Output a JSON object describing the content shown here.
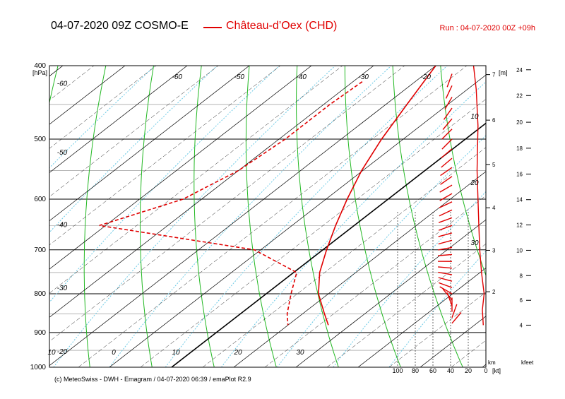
{
  "header": {
    "title": "04-07-2020 09Z COSMO-E",
    "station": "Château-d’Oex (CHD)",
    "run": "Run : 04-07-2020 00Z +09h"
  },
  "footer": "(c) MeteoSwiss - DWH - Emagram / 04-07-2020  06:39 / emaPlot R2.9",
  "colors": {
    "profile": "#e00000",
    "isotherm": "#000000",
    "dry_adiabat": "#22b822",
    "mixing_ratio": "#6ecbe6",
    "grid": "#000000"
  },
  "chart_data": {
    "type": "line",
    "title": "04-07-2020 09Z COSMO-E",
    "ylabel": "[hPa]",
    "y_log_scale": true,
    "ylim": [
      1000,
      400
    ],
    "pressure_ticks": [
      400,
      500,
      600,
      700,
      800,
      900,
      1000
    ],
    "isotherm_labels_bottom": [
      "10",
      "0",
      "10",
      "20",
      "30"
    ],
    "isotherm_labels_top": [
      "-60",
      "-50",
      "-40",
      "-30",
      "-20"
    ],
    "isotherm_labels_left": [
      "-60",
      "-50",
      "-40",
      "-30",
      "-20"
    ],
    "series": [
      {
        "name": "temperature",
        "style": "solid",
        "points": [
          {
            "p": 400,
            "t": -20.0
          },
          {
            "p": 450,
            "t": -16.6
          },
          {
            "p": 500,
            "t": -13.5
          },
          {
            "p": 550,
            "t": -10.2
          },
          {
            "p": 600,
            "t": -6.6
          },
          {
            "p": 650,
            "t": -3.0
          },
          {
            "p": 700,
            "t": 0.6
          },
          {
            "p": 750,
            "t": 4.2
          },
          {
            "p": 800,
            "t": 8.4
          },
          {
            "p": 850,
            "t": 13.5
          },
          {
            "p": 880,
            "t": 16.5
          }
        ]
      },
      {
        "name": "dewpoint",
        "style": "dashed",
        "points": [
          {
            "p": 420,
            "t": -28.5
          },
          {
            "p": 450,
            "t": -29.0
          },
          {
            "p": 500,
            "t": -29.0
          },
          {
            "p": 550,
            "t": -30.0
          },
          {
            "p": 600,
            "t": -33.0
          },
          {
            "p": 650,
            "t": -41.0
          },
          {
            "p": 700,
            "t": -11.0
          },
          {
            "p": 750,
            "t": 0.5
          },
          {
            "p": 800,
            "t": 4.0
          },
          {
            "p": 850,
            "t": 7.5
          },
          {
            "p": 880,
            "t": 10.0
          }
        ]
      }
    ],
    "wind_profile": {
      "name": "wind speed",
      "unit": "kt",
      "xlim": [
        100,
        0
      ],
      "ticks": [
        100,
        80,
        60,
        40,
        20,
        0
      ],
      "unit_label": "[kt]",
      "points": [
        {
          "p": 400,
          "v": 14
        },
        {
          "p": 430,
          "v": 11
        },
        {
          "p": 480,
          "v": 9
        },
        {
          "p": 550,
          "v": 10
        },
        {
          "p": 600,
          "v": 9
        },
        {
          "p": 650,
          "v": 8
        },
        {
          "p": 700,
          "v": 7
        },
        {
          "p": 750,
          "v": 5
        },
        {
          "p": 800,
          "v": 2
        },
        {
          "p": 840,
          "v": 4
        },
        {
          "p": 880,
          "v": 3
        }
      ]
    },
    "height_km": {
      "label": "[m]",
      "axis_label": "km",
      "ticks": [
        {
          "km": 2,
          "p": 795
        },
        {
          "km": 3,
          "p": 701
        },
        {
          "km": 4,
          "p": 616
        },
        {
          "km": 5,
          "p": 540
        },
        {
          "km": 6,
          "p": 472
        },
        {
          "km": 7,
          "p": 411
        }
      ]
    },
    "height_kfeet": {
      "axis_label": "kfeet",
      "ticks": [
        {
          "kft": 4,
          "p": 880
        },
        {
          "kft": 6,
          "p": 816
        },
        {
          "kft": 8,
          "p": 757
        },
        {
          "kft": 10,
          "p": 701
        },
        {
          "kft": 12,
          "p": 649
        },
        {
          "kft": 14,
          "p": 601
        },
        {
          "kft": 16,
          "p": 556
        },
        {
          "kft": 18,
          "p": 514
        },
        {
          "kft": 20,
          "p": 475
        },
        {
          "kft": 22,
          "p": 438
        },
        {
          "kft": 24,
          "p": 405
        }
      ]
    },
    "wind_panel_labels": [
      {
        "text": "10",
        "p": 470
      },
      {
        "text": "20",
        "p": 575
      },
      {
        "text": "30",
        "p": 690
      }
    ],
    "wind_barbs": [
      {
        "p": 410,
        "dir": 200
      },
      {
        "p": 425,
        "dir": 205
      },
      {
        "p": 440,
        "dir": 210
      },
      {
        "p": 455,
        "dir": 215
      },
      {
        "p": 470,
        "dir": 220
      },
      {
        "p": 485,
        "dir": 225
      },
      {
        "p": 500,
        "dir": 225
      },
      {
        "p": 515,
        "dir": 230
      },
      {
        "p": 530,
        "dir": 230
      },
      {
        "p": 545,
        "dir": 235
      },
      {
        "p": 560,
        "dir": 235
      },
      {
        "p": 575,
        "dir": 240
      },
      {
        "p": 590,
        "dir": 240
      },
      {
        "p": 605,
        "dir": 245
      },
      {
        "p": 620,
        "dir": 245
      },
      {
        "p": 635,
        "dir": 250
      },
      {
        "p": 650,
        "dir": 250
      },
      {
        "p": 665,
        "dir": 255
      },
      {
        "p": 680,
        "dir": 255
      },
      {
        "p": 695,
        "dir": 260
      },
      {
        "p": 710,
        "dir": 265
      },
      {
        "p": 725,
        "dir": 270
      },
      {
        "p": 740,
        "dir": 275
      },
      {
        "p": 755,
        "dir": 280
      },
      {
        "p": 770,
        "dir": 285
      },
      {
        "p": 785,
        "dir": 290
      },
      {
        "p": 800,
        "dir": 300
      },
      {
        "p": 815,
        "dir": 320
      },
      {
        "p": 830,
        "dir": 340
      },
      {
        "p": 845,
        "dir": 0
      },
      {
        "p": 860,
        "dir": 20
      },
      {
        "p": 875,
        "dir": 40
      }
    ]
  }
}
